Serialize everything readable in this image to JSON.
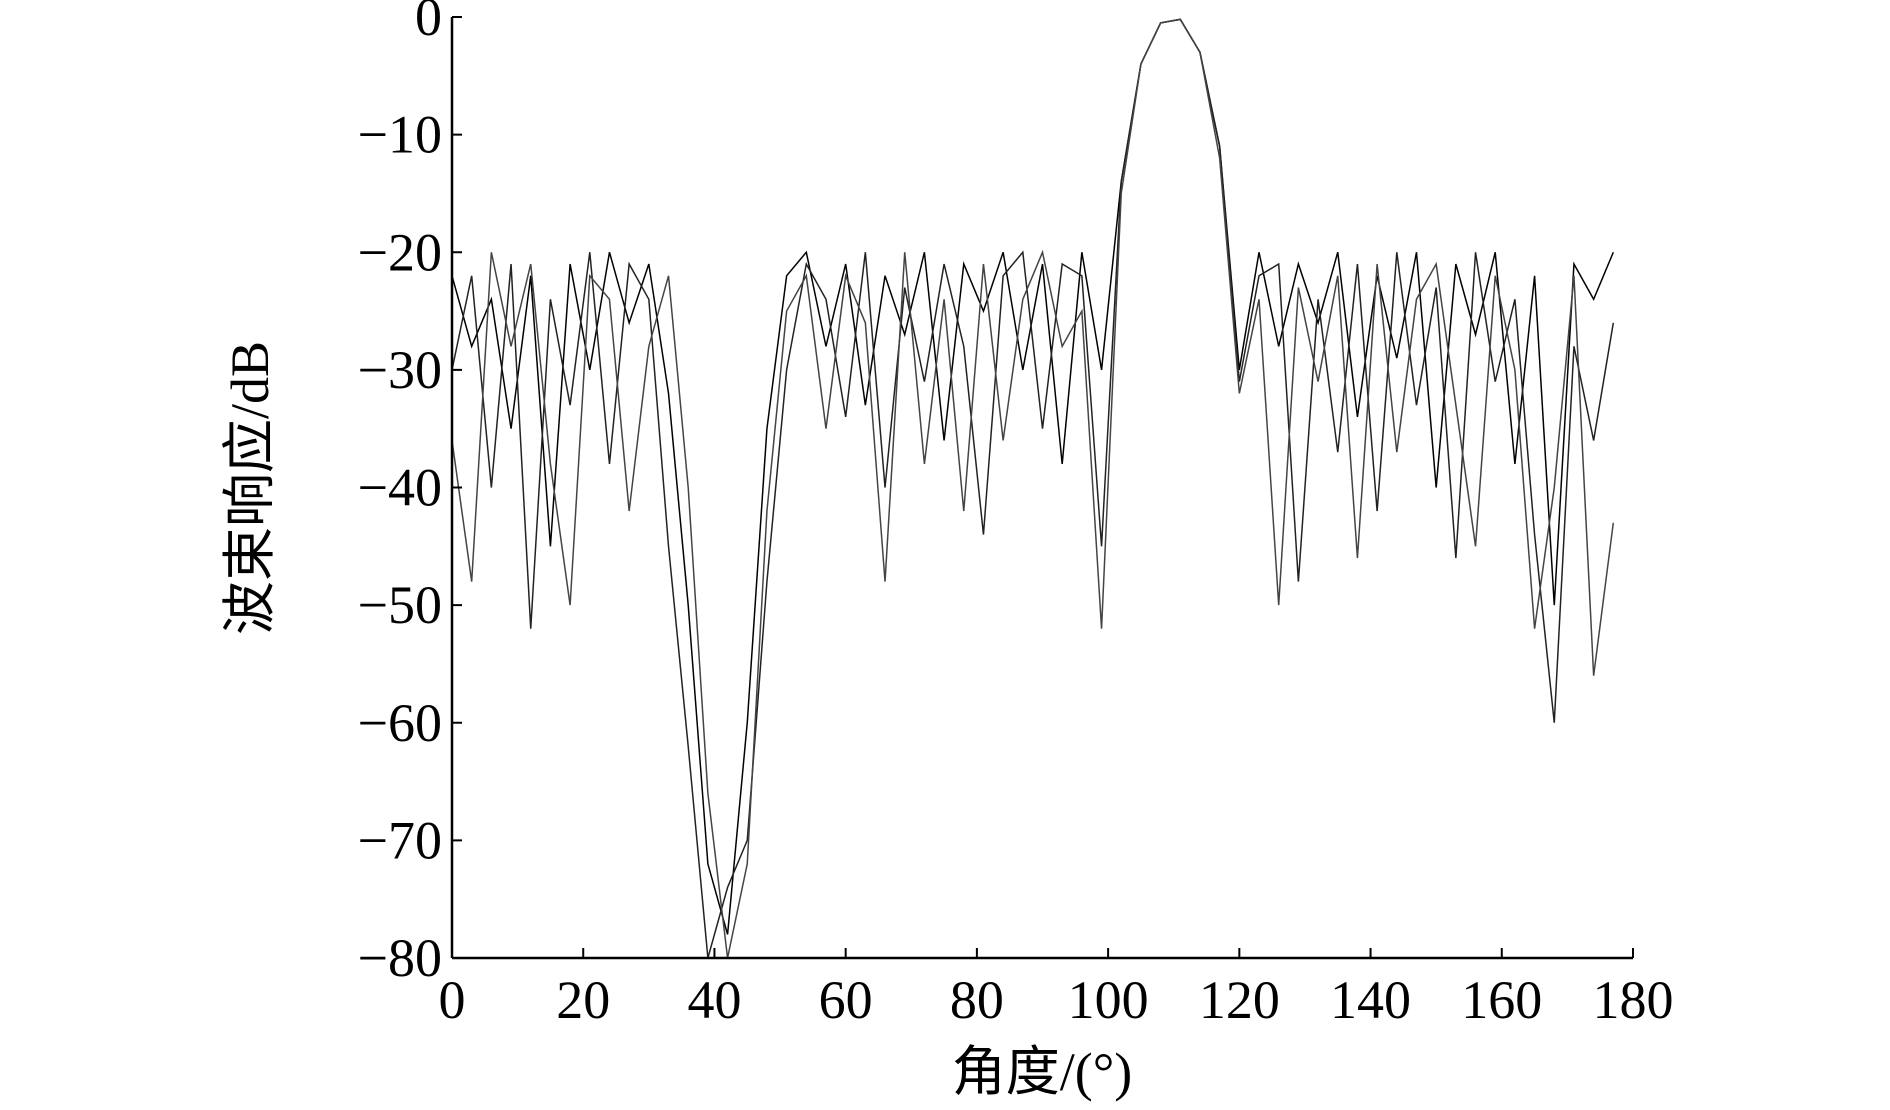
{
  "chart_data": {
    "type": "line",
    "xlabel": "角度/(°)",
    "ylabel": "波束响应/dB",
    "x": [
      0,
      3,
      6,
      9,
      12,
      15,
      18,
      21,
      24,
      27,
      30,
      33,
      36,
      39,
      42,
      45,
      48,
      51,
      54,
      57,
      60,
      63,
      66,
      69,
      72,
      75,
      78,
      81,
      84,
      87,
      90,
      93,
      96,
      99,
      102,
      105,
      108,
      111,
      114,
      117,
      120,
      123,
      126,
      129,
      132,
      135,
      138,
      141,
      144,
      147,
      150,
      153,
      156,
      159,
      162,
      165,
      168,
      171,
      174,
      177
    ],
    "series": [
      {
        "color": "#000000",
        "values": [
          -22,
          -28,
          -24,
          -35,
          -22,
          -45,
          -21,
          -30,
          -20,
          -26,
          -21,
          -32,
          -50,
          -72,
          -78,
          -60,
          -35,
          -22,
          -20,
          -28,
          -21,
          -33,
          -22,
          -27,
          -20,
          -36,
          -21,
          -25,
          -20,
          -30,
          -21,
          -38,
          -20,
          -30,
          -14,
          -4,
          -0.5,
          -0.2,
          -3,
          -11,
          -30,
          -20,
          -28,
          -21,
          -26,
          -20,
          -34,
          -22,
          -29,
          -20,
          -40,
          -21,
          -27,
          -20,
          -38,
          -22,
          -50,
          -21,
          -24,
          -20
        ]
      },
      {
        "color": "#222222",
        "values": [
          -30,
          -22,
          -40,
          -21,
          -52,
          -24,
          -33,
          -20,
          -38,
          -21,
          -24,
          -45,
          -62,
          -80,
          -74,
          -70,
          -48,
          -30,
          -21,
          -24,
          -34,
          -20,
          -40,
          -23,
          -31,
          -21,
          -28,
          -44,
          -22,
          -20,
          -35,
          -21,
          -22,
          -45,
          -14,
          -4,
          -0.5,
          -0.2,
          -3,
          -11,
          -31,
          -22,
          -21,
          -48,
          -24,
          -37,
          -21,
          -42,
          -20,
          -33,
          -23,
          -46,
          -20,
          -31,
          -24,
          -44,
          -60,
          -28,
          -36,
          -26
        ]
      },
      {
        "color": "#444444",
        "values": [
          -36,
          -48,
          -20,
          -28,
          -21,
          -38,
          -50,
          -22,
          -24,
          -42,
          -28,
          -22,
          -40,
          -66,
          -80,
          -72,
          -42,
          -25,
          -22,
          -35,
          -22,
          -26,
          -48,
          -20,
          -38,
          -24,
          -42,
          -21,
          -36,
          -24,
          -20,
          -28,
          -25,
          -52,
          -15,
          -4,
          -0.5,
          -0.2,
          -3,
          -12,
          -32,
          -24,
          -50,
          -23,
          -31,
          -22,
          -46,
          -21,
          -37,
          -24,
          -21,
          -33,
          -45,
          -22,
          -30,
          -52,
          -40,
          -22,
          -56,
          -43
        ]
      }
    ],
    "xlim": [
      0,
      180
    ],
    "xticks": [
      0,
      20,
      40,
      60,
      80,
      100,
      120,
      140,
      160,
      180
    ],
    "ylim": [
      -80,
      0
    ],
    "yticks": [
      {
        "value": 0,
        "label": "0"
      },
      {
        "value": -10,
        "label": "−10"
      },
      {
        "value": -20,
        "label": "−20"
      },
      {
        "value": -30,
        "label": "−30"
      },
      {
        "value": -40,
        "label": "−40"
      },
      {
        "value": -50,
        "label": "−50"
      },
      {
        "value": -60,
        "label": "−60"
      },
      {
        "value": -70,
        "label": "−70"
      },
      {
        "value": -80,
        "label": "−80"
      }
    ]
  }
}
